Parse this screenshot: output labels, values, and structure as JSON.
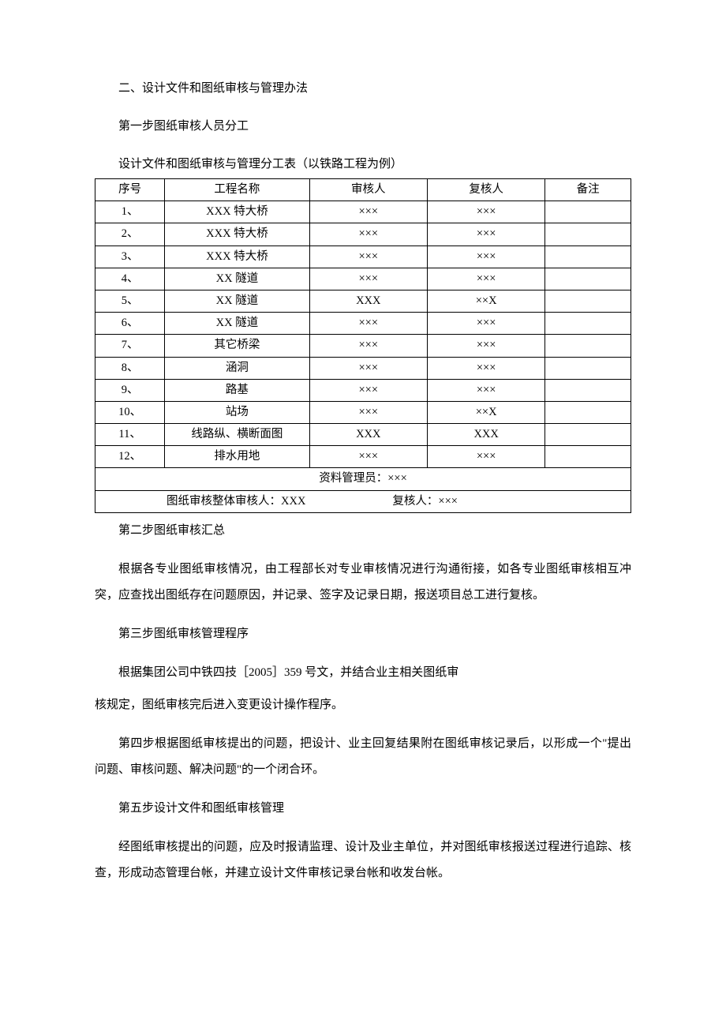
{
  "headings": {
    "section": "二、设计文件和图纸审核与管理办法",
    "step1": "第一步图纸审核人员分工",
    "table_title": "设计文件和图纸审核与管理分工表（以铁路工程为例）",
    "step2": "第二步图纸审核汇总",
    "step3": "第三步图纸审核管理程序",
    "step4_para": "第四步根据图纸审核提出的问题，把设计、业主回复结果附在图纸审核记录后，以形成一个\"提出问题、审核问题、解决问题\"的一个闭合环。",
    "step5": "第五步设计文件和图纸审核管理"
  },
  "table": {
    "headers": {
      "seq": "序号",
      "name": "工程名称",
      "reviewer": "审核人",
      "checker": "复核人",
      "note": "备注"
    },
    "rows": [
      {
        "seq": "1、",
        "name": "XXX 特大桥",
        "reviewer": "×××",
        "checker": "×××",
        "note": ""
      },
      {
        "seq": "2、",
        "name": "XXX 特大桥",
        "reviewer": "×××",
        "checker": "×××",
        "note": ""
      },
      {
        "seq": "3、",
        "name": "XXX 特大桥",
        "reviewer": "×××",
        "checker": "×××",
        "note": ""
      },
      {
        "seq": "4、",
        "name": "XX 隧道",
        "reviewer": "×××",
        "checker": "×××",
        "note": ""
      },
      {
        "seq": "5、",
        "name": "XX 隧道",
        "reviewer": "XXX",
        "checker": "××X",
        "note": ""
      },
      {
        "seq": "6、",
        "name": "XX 隧道",
        "reviewer": "×××",
        "checker": "×××",
        "note": ""
      },
      {
        "seq": "7、",
        "name": "其它桥梁",
        "reviewer": "×××",
        "checker": "×××",
        "note": ""
      },
      {
        "seq": "8、",
        "name": "涵洞",
        "reviewer": "×××",
        "checker": "×××",
        "note": ""
      },
      {
        "seq": "9、",
        "name": "路基",
        "reviewer": "×××",
        "checker": "×××",
        "note": ""
      },
      {
        "seq": "10、",
        "name": "站场",
        "reviewer": "×××",
        "checker": "××X",
        "note": ""
      },
      {
        "seq": "11、",
        "name": "线路纵、横断面图",
        "reviewer": "XXX",
        "checker": "XXX",
        "note": ""
      },
      {
        "seq": "12、",
        "name": "排水用地",
        "reviewer": "×××",
        "checker": "×××",
        "note": ""
      }
    ],
    "footer1": "资料管理员：×××",
    "footer2_left": "图纸审核整体审核人：XXX",
    "footer2_right": "复核人：×××"
  },
  "paragraphs": {
    "p1": "根据各专业图纸审核情况，由工程部长对专业审核情况进行沟通衔接，如各专业图纸审核相互冲突，应查找出图纸存在问题原因，并记录、签字及记录日期，报送项目总工进行复核。",
    "p2": "根据集团公司中铁四技［2005］359 号文，并结合业主相关图纸审",
    "p2b": "核规定，图纸审核完后进入变更设计操作程序。",
    "p3": "经图纸审核提出的问题，应及时报请监理、设计及业主单位，并对图纸审核报送过程进行追踪、核查，形成动态管理台帐，并建立设计文件审核记录台帐和收发台帐。"
  }
}
